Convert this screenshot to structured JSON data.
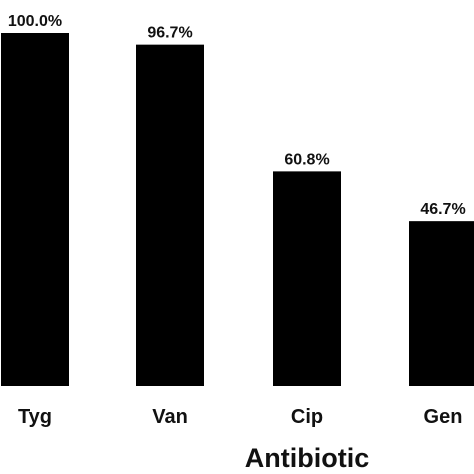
{
  "chart_data": {
    "type": "bar",
    "categories": [
      "Tyg",
      "Van",
      "Cip",
      "Gen"
    ],
    "values": [
      100.0,
      96.7,
      60.8,
      46.7
    ],
    "data_labels": [
      "100.0%",
      "96.7%",
      "60.8%",
      "46.7%"
    ],
    "xlabel": "Antibiotic",
    "ylabel": "",
    "ylim": [
      0,
      100
    ],
    "grid": false,
    "legend": "none",
    "bar_color": "#000000"
  }
}
